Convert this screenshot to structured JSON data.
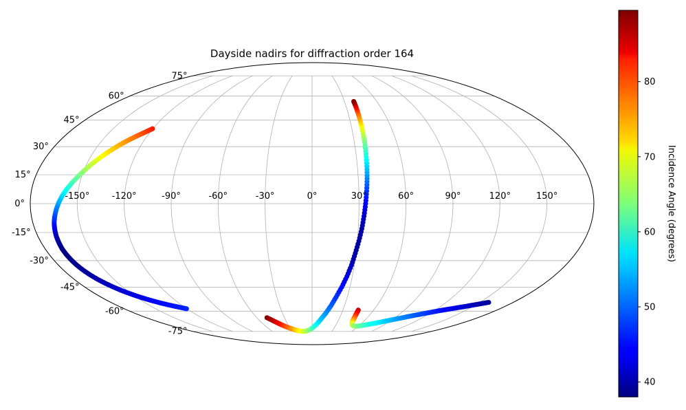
{
  "chart_data": {
    "type": "scatter",
    "projection": "mollweide",
    "title": "Dayside nadirs for diffraction order 164",
    "xlabel": "",
    "ylabel": "",
    "xlim": [
      -180,
      180
    ],
    "ylim": [
      -90,
      90
    ],
    "grid": true,
    "lon_ticks": [
      -150,
      -120,
      -90,
      -60,
      -30,
      0,
      30,
      60,
      90,
      120,
      150
    ],
    "lon_tick_labels": [
      "-150°",
      "-120°",
      "-90°",
      "-60°",
      "-30°",
      "0°",
      "30°",
      "60°",
      "90°",
      "120°",
      "150°"
    ],
    "lat_ticks": [
      75,
      60,
      45,
      30,
      15,
      0,
      -15,
      -30,
      -45,
      -60,
      -75
    ],
    "lat_tick_labels": [
      "75°",
      "60°",
      "45°",
      "30°",
      "15°",
      "0°",
      "-15°",
      "-30°",
      "-45°",
      "-60°",
      "-75°"
    ],
    "colorbar": {
      "label": "Incidence Angle (degrees)",
      "colormap": "jet",
      "vmin": 38,
      "vmax": 89.5,
      "ticks": [
        40,
        50,
        60,
        70,
        80
      ],
      "tick_labels": [
        "40",
        "50",
        "60",
        "70",
        "80"
      ]
    },
    "series": [
      {
        "lon": [
          -120.3,
          -122.5,
          -125.0,
          -128.0,
          -131.0,
          -134.0,
          -137.0,
          -140.0,
          -143.0,
          -146.0,
          -149.0,
          -152.0,
          -155.0,
          -157.5,
          -159.8,
          -161.8,
          -163.5,
          -165.0,
          -166.3,
          -167.2,
          -167.9,
          -168.3,
          -168.5,
          -168.3,
          -167.8,
          -167.0,
          -165.8,
          -164.2,
          -162.3,
          -160.0,
          -157.5,
          -154.7,
          -151.5,
          -148.2,
          -144.6,
          -140.8,
          -136.7,
          -132.6,
          -128.4,
          -124.2,
          -120.3
        ],
        "lat": [
          40.0,
          38.7,
          37.3,
          35.6,
          33.8,
          31.8,
          29.5,
          27.0,
          24.3,
          21.3,
          18.0,
          14.5,
          10.8,
          7.5,
          4.0,
          0.5,
          -3.0,
          -6.5,
          -10.0,
          -13.5,
          -17.0,
          -20.5,
          -23.5,
          -26.5,
          -29.5,
          -32.5,
          -35.3,
          -38.0,
          -40.5,
          -42.8,
          -44.9,
          -46.9,
          -48.7,
          -50.4,
          -51.9,
          -53.3,
          -54.6,
          -55.7,
          -56.7,
          -57.6,
          -58.4
        ],
        "angle": [
          82.0,
          80.8,
          79.5,
          78.0,
          76.5,
          75.0,
          73.5,
          71.8,
          70.0,
          68.0,
          66.0,
          63.5,
          61.0,
          58.5,
          56.0,
          53.5,
          51.0,
          48.5,
          46.0,
          43.5,
          41.0,
          39.5,
          38.5,
          38.3,
          38.5,
          38.8,
          39.2,
          39.8,
          40.3,
          40.9,
          41.5,
          42.1,
          42.7,
          43.2,
          43.7,
          44.2,
          44.6,
          45.0,
          45.4,
          45.8,
          46.2
        ]
      },
      {
        "lon": [
          -49.0,
          -45.0,
          -41.5,
          -38.0,
          -34.0,
          -30.0,
          -25.5,
          -21.0,
          -16.5,
          -12.0,
          -7.5,
          -3.0,
          1.5,
          6.0,
          10.0,
          14.0,
          17.5,
          20.5,
          23.5,
          26.0,
          28.0,
          29.5,
          31.0,
          32.3,
          33.3,
          34.2,
          35.0,
          35.7,
          36.3,
          36.8,
          37.3,
          37.7,
          38.0,
          38.3,
          38.5,
          38.6
        ],
        "lat": [
          -64.5,
          -66.5,
          -68.2,
          -69.8,
          -71.2,
          -72.4,
          -73.5,
          -74.3,
          -74.8,
          -75.0,
          -74.6,
          -73.5,
          -71.7,
          -69.0,
          -65.5,
          -61.3,
          -56.5,
          -51.0,
          -45.0,
          -38.8,
          -32.5,
          -26.0,
          -19.5,
          -13.0,
          -6.5,
          0.0,
          6.5,
          13.0,
          19.5,
          26.0,
          32.5,
          38.8,
          44.5,
          49.5,
          53.5,
          56.5
        ],
        "angle": [
          89.0,
          87.0,
          84.5,
          82.0,
          79.5,
          77.0,
          74.5,
          72.0,
          70.0,
          68.0,
          66.0,
          63.5,
          60.5,
          57.5,
          54.5,
          52.0,
          49.5,
          47.0,
          45.0,
          43.0,
          41.0,
          40.0,
          39.5,
          40.0,
          41.5,
          44.0,
          47.0,
          51.0,
          55.0,
          59.0,
          63.0,
          68.0,
          73.0,
          78.0,
          84.0,
          89.0
        ]
      },
      {
        "lon": [
          45.0,
          45.2,
          45.6,
          46.2,
          47.0,
          48.5,
          50.5,
          53.0,
          56.0,
          59.5,
          63.0,
          67.0,
          71.0,
          75.5,
          80.0,
          84.5,
          89.0,
          93.5,
          98.0,
          102.5,
          107.0,
          111.5,
          116.0,
          120.5,
          125.0,
          129.5,
          134.0,
          138.5,
          143.0,
          147.0,
          151.0,
          154.5,
          158.0
        ],
        "lat": [
          -59.3,
          -61.5,
          -63.5,
          -65.5,
          -67.3,
          -68.8,
          -69.9,
          -70.5,
          -70.8,
          -70.7,
          -70.3,
          -69.8,
          -69.2,
          -68.5,
          -67.8,
          -67.0,
          -66.2,
          -65.4,
          -64.6,
          -63.7,
          -62.9,
          -62.1,
          -61.3,
          -60.5,
          -59.7,
          -59.0,
          -58.3,
          -57.6,
          -56.9,
          -56.2,
          -55.5,
          -54.9,
          -54.3
        ],
        "angle": [
          86.0,
          83.5,
          80.5,
          77.0,
          73.5,
          70.5,
          68.0,
          66.0,
          64.5,
          63.0,
          61.5,
          60.0,
          58.7,
          57.5,
          56.3,
          55.0,
          53.8,
          52.6,
          51.5,
          50.4,
          49.3,
          48.3,
          47.3,
          46.3,
          45.4,
          44.5,
          43.6,
          42.8,
          42.0,
          41.3,
          40.6,
          40.0,
          39.5
        ]
      }
    ]
  }
}
